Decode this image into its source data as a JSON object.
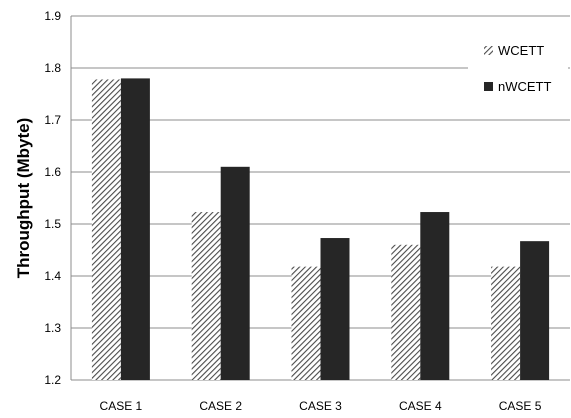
{
  "chart_data": {
    "type": "bar",
    "title": "",
    "xlabel": "",
    "ylabel": "Throughput (Mbyte)",
    "ylim": [
      1.2,
      1.9
    ],
    "yticks": [
      1.2,
      1.3,
      1.4,
      1.5,
      1.6,
      1.7,
      1.8,
      1.9
    ],
    "ytick_labels": [
      "1.2",
      "1.3",
      "1.4",
      "1.5",
      "1.6",
      "1.7",
      "1.8",
      "1.9"
    ],
    "grid": true,
    "legend_position": "top-right",
    "categories": [
      "CASE 1",
      "CASE 2",
      "CASE 3",
      "CASE 4",
      "CASE 5"
    ],
    "series": [
      {
        "name": "WCETT",
        "values": [
          1.778,
          1.523,
          1.418,
          1.46,
          1.418
        ],
        "fill": "hatched",
        "color": "#555555"
      },
      {
        "name": "nWCETT",
        "values": [
          1.78,
          1.61,
          1.473,
          1.523,
          1.467
        ],
        "fill": "solid",
        "color": "#262626"
      }
    ]
  }
}
